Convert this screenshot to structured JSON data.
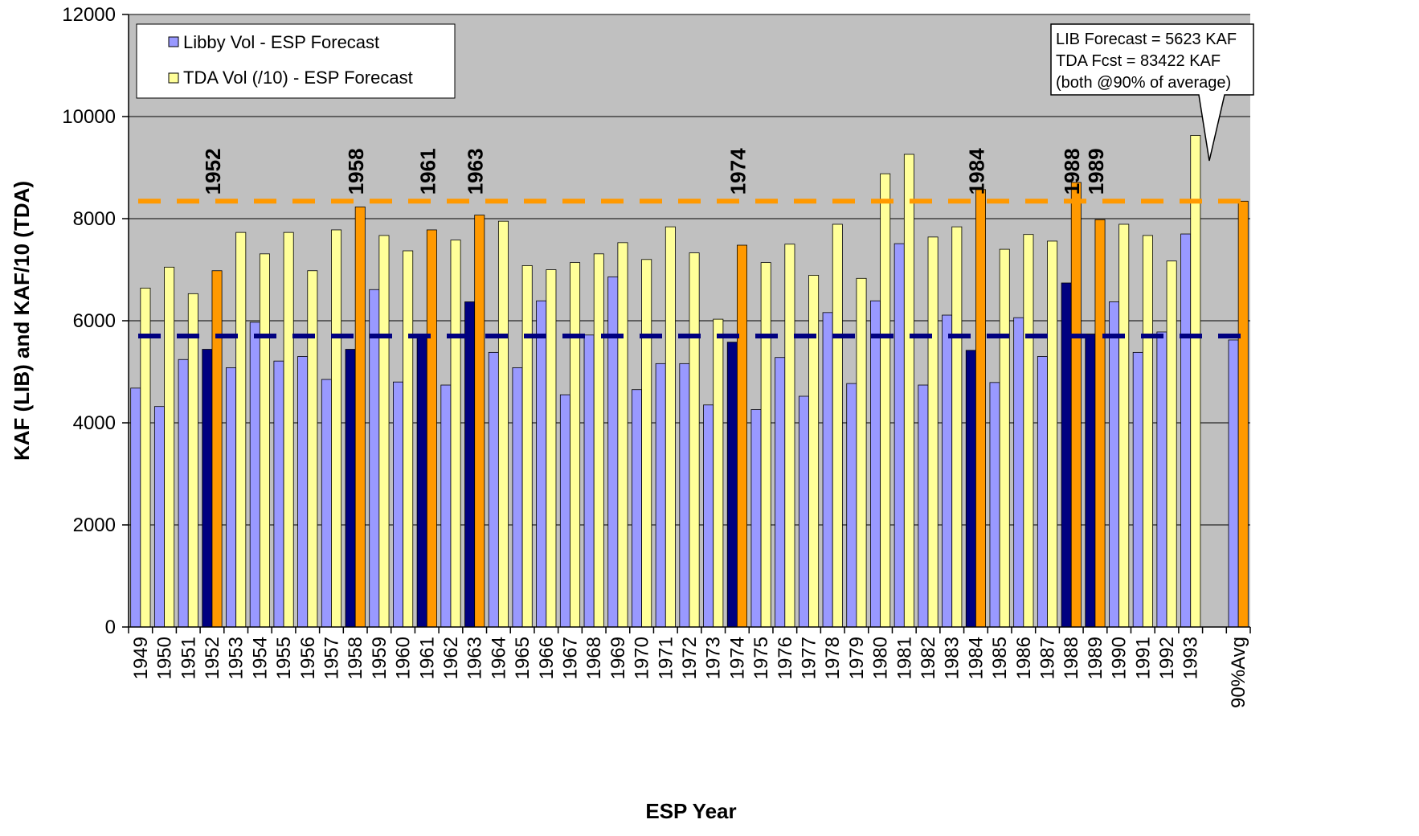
{
  "chart_data": {
    "type": "bar",
    "xlabel": "ESP Year",
    "ylabel": "KAF (LIB) and KAF/10 (TDA)",
    "ylim": [
      0,
      12000
    ],
    "yticks": [
      "0",
      "2000",
      "4000",
      "6000",
      "8000",
      "10000",
      "12000"
    ],
    "grid": true,
    "legend_position": "top-left",
    "categories": [
      "1949",
      "1950",
      "1951",
      "1952",
      "1953",
      "1954",
      "1955",
      "1956",
      "1957",
      "1958",
      "1959",
      "1960",
      "1961",
      "1962",
      "1963",
      "1964",
      "1965",
      "1966",
      "1967",
      "1968",
      "1969",
      "1970",
      "1971",
      "1972",
      "1973",
      "1974",
      "1975",
      "1976",
      "1977",
      "1978",
      "1979",
      "1980",
      "1981",
      "1982",
      "1983",
      "1984",
      "1985",
      "1986",
      "1987",
      "1988",
      "1989",
      "1990",
      "1991",
      "1992",
      "1993",
      "",
      "90%Avg"
    ],
    "series": [
      {
        "name": "Libby Vol - ESP Forecast",
        "color": "#9999ff",
        "values": [
          4680,
          4320,
          5240,
          5440,
          5080,
          5970,
          5210,
          5300,
          4850,
          5440,
          6610,
          4800,
          5720,
          4740,
          6370,
          5380,
          5080,
          6390,
          4550,
          5720,
          6860,
          4650,
          5160,
          5160,
          4350,
          5580,
          4260,
          5280,
          4520,
          6160,
          4770,
          6390,
          7510,
          4740,
          6110,
          5420,
          4790,
          6060,
          5300,
          6740,
          5740,
          6370,
          5380,
          5780,
          7700,
          null,
          5623
        ]
      },
      {
        "name": "TDA Vol (/10) - ESP Forecast",
        "color": "#ffff99",
        "values": [
          6640,
          7050,
          6530,
          6980,
          7730,
          7310,
          7730,
          6980,
          7780,
          8230,
          7670,
          7370,
          7780,
          7580,
          8070,
          7950,
          7080,
          7000,
          7140,
          7310,
          7530,
          7200,
          7840,
          7330,
          6030,
          7480,
          7140,
          7500,
          6890,
          7890,
          6830,
          8880,
          9260,
          7640,
          7840,
          8570,
          7400,
          7690,
          7560,
          8710,
          7980,
          7890,
          7670,
          7170,
          9630,
          null,
          8342
        ]
      }
    ],
    "highlight_colors": {
      "libby": "#000080",
      "tda": "#ff9900"
    },
    "highlighted_years": [
      "1952",
      "1958",
      "1961",
      "1963",
      "1974",
      "1984",
      "1988",
      "1989"
    ],
    "reference_lines": [
      {
        "value": 8342,
        "color": "#ff9900",
        "style": "dashed"
      },
      {
        "value": 5700,
        "color": "#000080",
        "style": "dashed"
      }
    ],
    "annotations": [
      "1952",
      "1958",
      "1961",
      "1963",
      "1974",
      "1984",
      "1988",
      "1989"
    ],
    "legend": [
      "Libby Vol - ESP Forecast",
      "TDA Vol (/10) - ESP Forecast"
    ],
    "callout": [
      "LIB Forecast = 5623 KAF",
      "TDA Fcst = 83422 KAF",
      "(both @90% of average)"
    ],
    "plot_background": "#c0c0c0"
  }
}
